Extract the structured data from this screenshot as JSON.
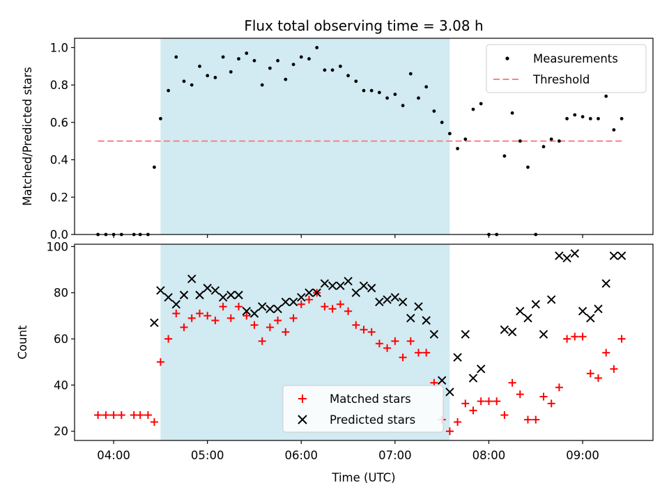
{
  "colors": {
    "shade": "#add8e6",
    "measurement": "#000000",
    "threshold": "#ff7f7f",
    "matched": "#ff0000",
    "predicted": "#000000"
  },
  "chart_data": [
    {
      "type": "scatter",
      "title": "Flux total observing time = 3.08 h",
      "xlabel": "",
      "ylabel": "Matched/Predicted stars",
      "ylim": [
        0,
        1.05
      ],
      "yticks": [
        "0.0",
        "0.2",
        "0.4",
        "0.6",
        "0.8",
        "1.0"
      ],
      "xlim": [
        "03:35",
        "09:45"
      ],
      "shaded_interval": [
        "04:30",
        "07:35"
      ],
      "legend_position": "top-right",
      "threshold": {
        "name": "Threshold",
        "y": 0.5,
        "x": [
          "03:50",
          "09:25"
        ],
        "style": "dashed"
      },
      "series": [
        {
          "name": "Measurements",
          "marker": "dot",
          "x": [
            "03:50",
            "03:55",
            "04:00",
            "04:05",
            "04:13",
            "04:17",
            "04:22",
            "04:26",
            "04:30",
            "04:35",
            "04:40",
            "04:45",
            "04:50",
            "04:55",
            "05:00",
            "05:05",
            "05:10",
            "05:15",
            "05:20",
            "05:25",
            "05:30",
            "05:35",
            "05:40",
            "05:45",
            "05:50",
            "05:55",
            "06:00",
            "06:05",
            "06:10",
            "06:15",
            "06:20",
            "06:25",
            "06:30",
            "06:35",
            "06:40",
            "06:45",
            "06:50",
            "06:55",
            "07:00",
            "07:05",
            "07:10",
            "07:15",
            "07:20",
            "07:25",
            "07:30",
            "07:35",
            "07:40",
            "07:45",
            "07:50",
            "07:55",
            "08:00",
            "08:05",
            "08:10",
            "08:15",
            "08:20",
            "08:25",
            "08:30",
            "08:35",
            "08:40",
            "08:45",
            "08:50",
            "08:55",
            "09:00",
            "09:05",
            "09:10",
            "09:15",
            "09:20",
            "09:25"
          ],
          "y": [
            0.0,
            0.0,
            0.0,
            0.0,
            0.0,
            0.0,
            0.0,
            0.36,
            0.62,
            0.77,
            0.95,
            0.82,
            0.8,
            0.9,
            0.85,
            0.84,
            0.95,
            0.87,
            0.94,
            0.97,
            0.93,
            0.8,
            0.89,
            0.93,
            0.83,
            0.91,
            0.95,
            0.94,
            1.0,
            0.88,
            0.88,
            0.9,
            0.85,
            0.82,
            0.77,
            0.77,
            0.76,
            0.73,
            0.75,
            0.69,
            0.86,
            0.73,
            0.79,
            0.66,
            0.6,
            0.54,
            0.46,
            0.51,
            0.67,
            0.7,
            0.0,
            0.0,
            0.42,
            0.65,
            0.5,
            0.36,
            0.0,
            0.47,
            0.51,
            0.5,
            0.62,
            0.64,
            0.63,
            0.62,
            0.62,
            0.74,
            0.56,
            0.62
          ]
        }
      ]
    },
    {
      "type": "scatter",
      "title": "",
      "xlabel": "Time (UTC)",
      "ylabel": "Count",
      "ylim": [
        16,
        101
      ],
      "yticks": [
        "20",
        "40",
        "60",
        "80",
        "100"
      ],
      "xticks": [
        "04:00",
        "05:00",
        "06:00",
        "07:00",
        "08:00",
        "09:00"
      ],
      "xlim": [
        "03:35",
        "09:45"
      ],
      "shaded_interval": [
        "04:30",
        "07:35"
      ],
      "legend_position": "bottom-center",
      "series": [
        {
          "name": "Matched stars",
          "marker": "plus",
          "x": [
            "03:50",
            "03:55",
            "04:00",
            "04:05",
            "04:13",
            "04:17",
            "04:22",
            "04:26",
            "04:30",
            "04:35",
            "04:40",
            "04:45",
            "04:50",
            "04:55",
            "05:00",
            "05:05",
            "05:10",
            "05:15",
            "05:20",
            "05:25",
            "05:30",
            "05:35",
            "05:40",
            "05:45",
            "05:50",
            "05:55",
            "06:00",
            "06:05",
            "06:10",
            "06:15",
            "06:20",
            "06:25",
            "06:30",
            "06:35",
            "06:40",
            "06:45",
            "06:50",
            "06:55",
            "07:00",
            "07:05",
            "07:10",
            "07:15",
            "07:20",
            "07:25",
            "07:30",
            "07:35",
            "07:40",
            "07:45",
            "07:50",
            "07:55",
            "08:00",
            "08:05",
            "08:10",
            "08:15",
            "08:20",
            "08:25",
            "08:30",
            "08:35",
            "08:40",
            "08:45",
            "08:50",
            "08:55",
            "09:00",
            "09:05",
            "09:10",
            "09:15",
            "09:20",
            "09:25"
          ],
          "y": [
            27,
            27,
            27,
            27,
            27,
            27,
            27,
            24,
            50,
            60,
            71,
            65,
            69,
            71,
            70,
            68,
            74,
            69,
            74,
            70,
            66,
            59,
            65,
            68,
            63,
            69,
            75,
            77,
            80,
            74,
            73,
            75,
            72,
            66,
            64,
            63,
            58,
            56,
            59,
            52,
            59,
            54,
            54,
            41,
            25,
            20,
            24,
            32,
            29,
            33,
            33,
            33,
            27,
            41,
            36,
            25,
            25,
            35,
            32,
            39,
            60,
            61,
            61,
            45,
            43,
            54,
            47,
            60
          ]
        },
        {
          "name": "Predicted stars",
          "marker": "x",
          "x": [
            "04:26",
            "04:30",
            "04:35",
            "04:40",
            "04:45",
            "04:50",
            "04:55",
            "05:00",
            "05:05",
            "05:10",
            "05:15",
            "05:20",
            "05:25",
            "05:30",
            "05:35",
            "05:40",
            "05:45",
            "05:50",
            "05:55",
            "06:00",
            "06:05",
            "06:10",
            "06:15",
            "06:20",
            "06:25",
            "06:30",
            "06:35",
            "06:40",
            "06:45",
            "06:50",
            "06:55",
            "07:00",
            "07:05",
            "07:10",
            "07:15",
            "07:20",
            "07:25",
            "07:30",
            "07:35",
            "07:40",
            "07:45",
            "07:50",
            "07:55",
            "08:10",
            "08:15",
            "08:20",
            "08:25",
            "08:30",
            "08:35",
            "08:40",
            "08:45",
            "08:50",
            "08:55",
            "09:00",
            "09:05",
            "09:10",
            "09:15",
            "09:20",
            "09:25"
          ],
          "y": [
            67,
            81,
            78,
            75,
            79,
            86,
            79,
            82,
            81,
            78,
            79,
            79,
            72,
            71,
            74,
            73,
            73,
            76,
            76,
            78,
            80,
            80,
            84,
            83,
            83,
            85,
            80,
            83,
            82,
            76,
            77,
            78,
            76,
            69,
            74,
            68,
            62,
            42,
            37,
            52,
            62,
            43,
            47,
            64,
            63,
            72,
            69,
            75,
            62,
            77,
            96,
            95,
            97,
            72,
            69,
            73,
            84,
            96,
            96
          ]
        }
      ]
    }
  ]
}
